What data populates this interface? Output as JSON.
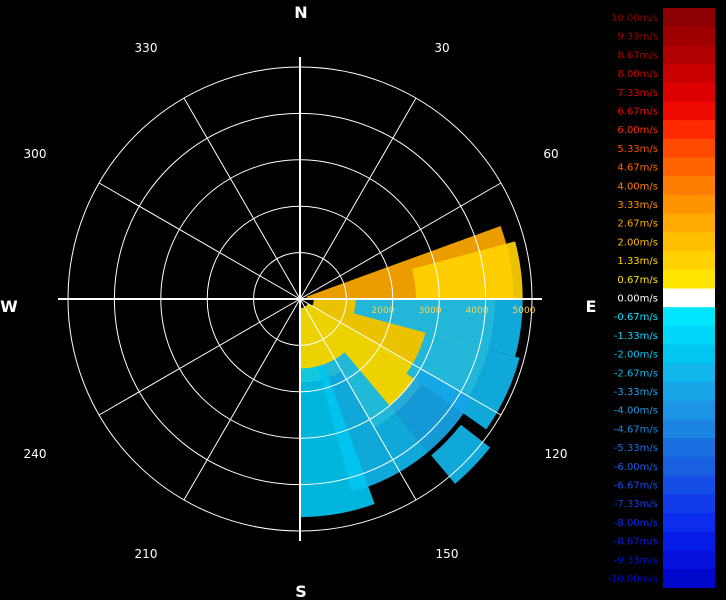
{
  "chart_data": {
    "type": "heatmap",
    "subtype": "polar-radar-velocity",
    "compass_labels": [
      "N",
      "E",
      "S",
      "W"
    ],
    "angle_labels": [
      "30",
      "60",
      "120",
      "150",
      "210",
      "240",
      "300",
      "330"
    ],
    "range_rings": [
      1000,
      2000,
      3000,
      4000,
      5000
    ],
    "range_labels": [
      "2000",
      "3000",
      "4000",
      "5000"
    ],
    "range_max": 5000,
    "legend": {
      "labels": [
        "10.00m/s",
        "9.33m/s",
        "8.67m/s",
        "8.00m/s",
        "7.33m/s",
        "6.67m/s",
        "6.00m/s",
        "5.33m/s",
        "4.67m/s",
        "4.00m/s",
        "3.33m/s",
        "2.67m/s",
        "2.00m/s",
        "1.33m/s",
        "0.67m/s",
        "0.00m/s",
        "-0.67m/s",
        "-1.33m/s",
        "-2.00m/s",
        "-2.67m/s",
        "-3.33m/s",
        "-4.00m/s",
        "-4.67m/s",
        "-5.33m/s",
        "-6.00m/s",
        "-6.67m/s",
        "-7.33m/s",
        "-8.00m/s",
        "-8.67m/s",
        "-9.33m/s",
        "-10.00m/s"
      ],
      "colors": [
        "#8b0000",
        "#9e0000",
        "#b00000",
        "#c80000",
        "#dc0000",
        "#ee0a00",
        "#ff2a00",
        "#ff4a00",
        "#ff6400",
        "#ff7e00",
        "#ff9400",
        "#ffaa00",
        "#ffbe00",
        "#ffd200",
        "#ffe400",
        "#ffffff",
        "#00e6ff",
        "#00d6f8",
        "#00c6f0",
        "#10b6ec",
        "#16a6e8",
        "#1c96e4",
        "#1c84e2",
        "#1a70e0",
        "#1860e0",
        "#144ee6",
        "#103cea",
        "#0c2cee",
        "#081ce8",
        "#0410dc",
        "#0008cc"
      ]
    },
    "sectors": [
      {
        "az_start": 70,
        "az_end": 90,
        "r_start": 150,
        "r_end": 4600,
        "value": 2.67
      },
      {
        "az_start": 75,
        "az_end": 90,
        "r_start": 2500,
        "r_end": 4800,
        "value": 1.33
      },
      {
        "az_start": 90,
        "az_end": 120,
        "r_start": 300,
        "r_end": 4200,
        "value": 1.33
      },
      {
        "az_start": 120,
        "az_end": 150,
        "r_start": 200,
        "r_end": 3200,
        "value": 0.67
      },
      {
        "az_start": 150,
        "az_end": 180,
        "r_start": 200,
        "r_end": 1800,
        "value": 0.67
      },
      {
        "az_start": 90,
        "az_end": 105,
        "r_start": 1200,
        "r_end": 4800,
        "value": -2.67
      },
      {
        "az_start": 105,
        "az_end": 125,
        "r_start": 2800,
        "r_end": 4900,
        "value": -2.67
      },
      {
        "az_start": 120,
        "az_end": 140,
        "r_start": 3000,
        "r_end": 4300,
        "value": -3.33
      },
      {
        "az_start": 140,
        "az_end": 165,
        "r_start": 1500,
        "r_end": 4300,
        "value": -2.67
      },
      {
        "az_start": 160,
        "az_end": 180,
        "r_start": 1500,
        "r_end": 4700,
        "value": -2.0
      },
      {
        "az_start": 128,
        "az_end": 140,
        "r_start": 4400,
        "r_end": 5200,
        "value": -2.67
      }
    ]
  }
}
